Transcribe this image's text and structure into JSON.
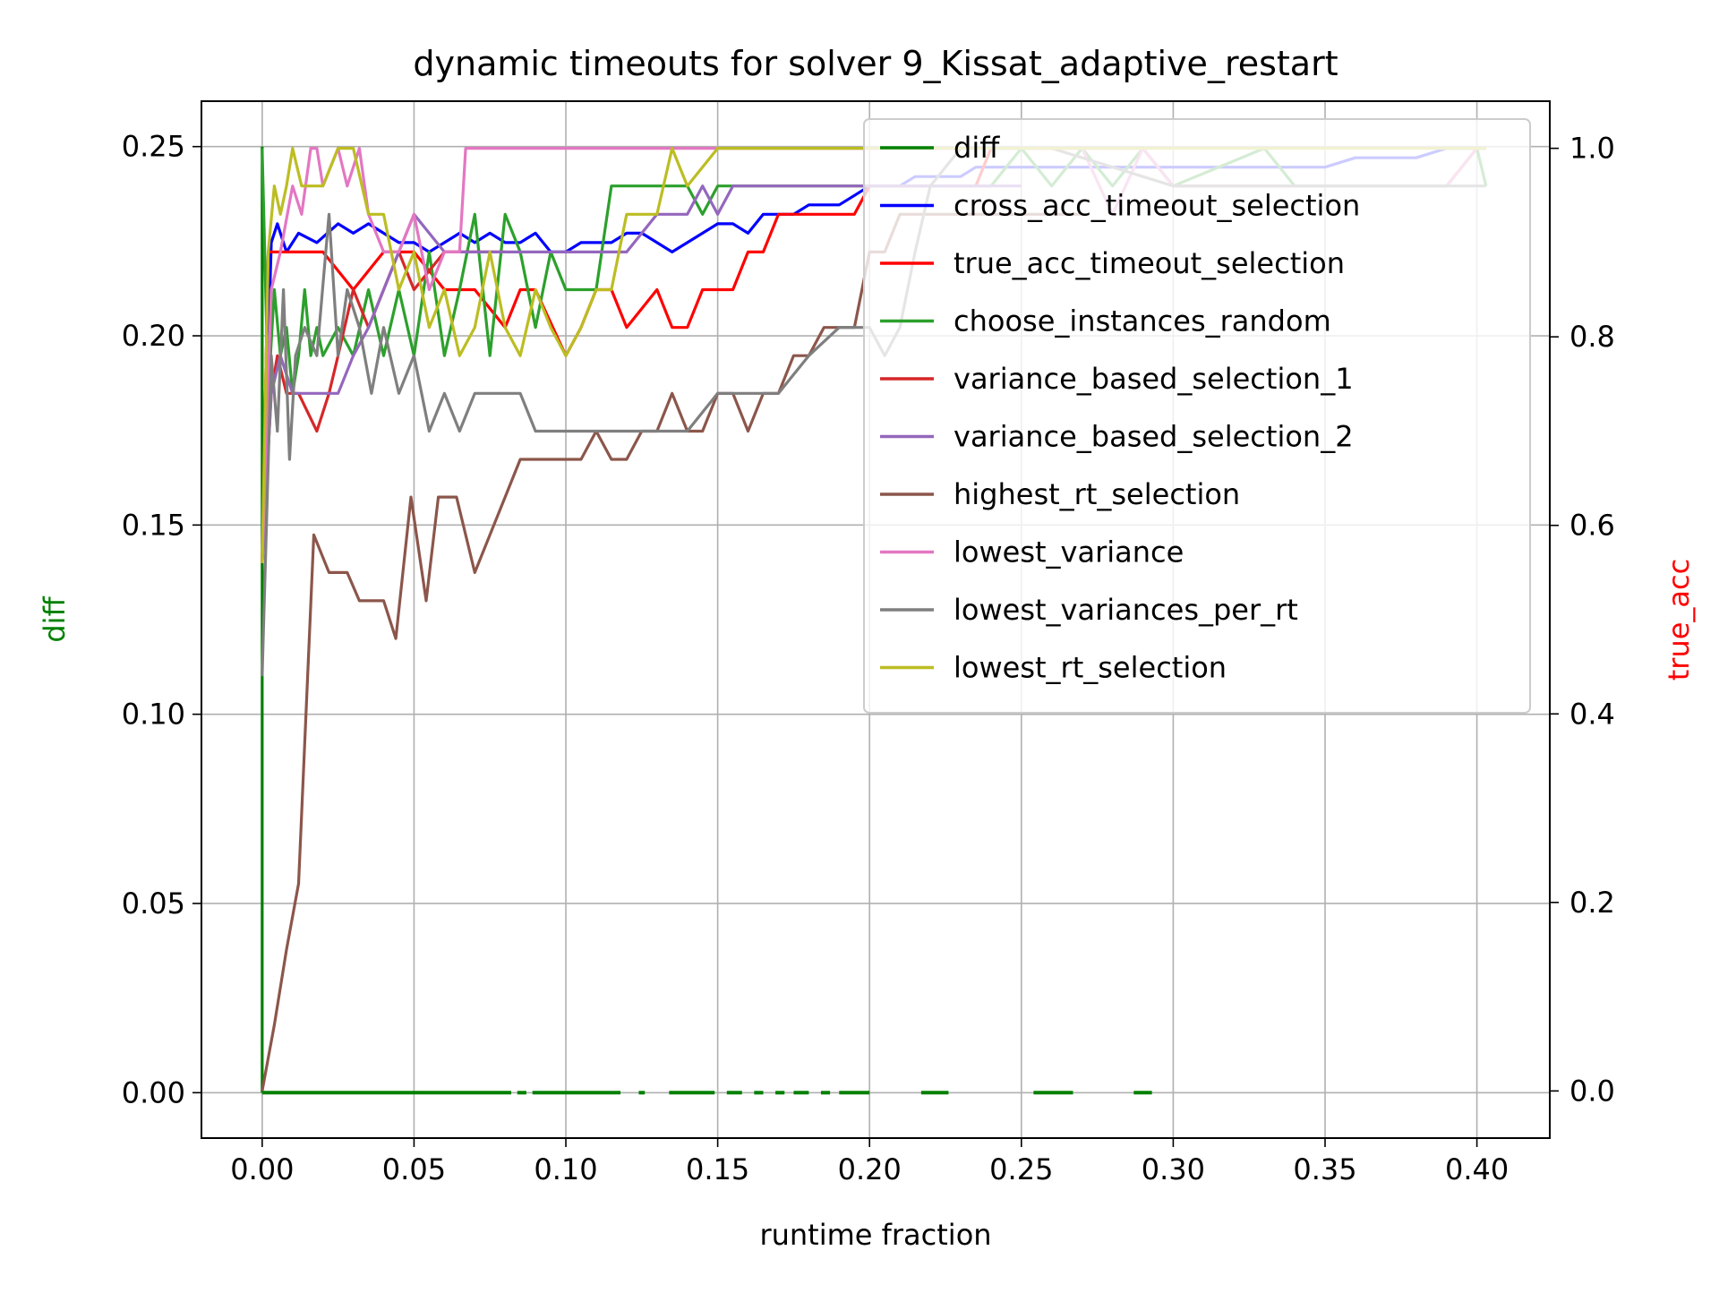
{
  "chart_data": {
    "type": "line",
    "title": "dynamic timeouts for solver 9_Kissat_adaptive_restart",
    "xlabel": "runtime fraction",
    "ylabel_left": "diff",
    "ylabel_right": "true_acc",
    "xlim": [
      -0.02,
      0.424
    ],
    "ylim_left": [
      -0.012,
      0.262
    ],
    "ylim_right": [
      -0.05,
      1.05
    ],
    "x_ticks": [
      "0.00",
      "0.05",
      "0.10",
      "0.15",
      "0.20",
      "0.25",
      "0.30",
      "0.35",
      "0.40"
    ],
    "y_left_ticks": [
      "0.00",
      "0.05",
      "0.10",
      "0.15",
      "0.20",
      "0.25"
    ],
    "y_right_ticks": [
      "0.0",
      "0.2",
      "0.4",
      "0.6",
      "0.8",
      "1.0"
    ],
    "grid": true,
    "legend_position": "top-right",
    "colors": {
      "diff": "#008000",
      "axis_label_left": "#008000",
      "axis_label_right": "#ff0000"
    },
    "diff_series": {
      "name": "diff",
      "color": "#008000",
      "spike": {
        "x": 0.0,
        "y_top": 0.25
      },
      "zero_segments": [
        [
          0.0,
          0.082
        ],
        [
          0.084,
          0.087
        ],
        [
          0.089,
          0.118
        ],
        [
          0.124,
          0.126
        ],
        [
          0.134,
          0.149
        ],
        [
          0.153,
          0.158
        ],
        [
          0.162,
          0.165
        ],
        [
          0.169,
          0.172
        ],
        [
          0.175,
          0.18
        ],
        [
          0.184,
          0.187
        ],
        [
          0.19,
          0.2
        ],
        [
          0.217,
          0.226
        ],
        [
          0.254,
          0.267
        ],
        [
          0.287,
          0.293
        ]
      ]
    },
    "series": [
      {
        "name": "cross_acc_timeout_selection",
        "color": "#0000ff",
        "axis": "right",
        "x": [
          0,
          0.003,
          0.005,
          0.008,
          0.012,
          0.018,
          0.025,
          0.03,
          0.035,
          0.04,
          0.045,
          0.05,
          0.055,
          0.06,
          0.065,
          0.07,
          0.075,
          0.08,
          0.085,
          0.09,
          0.095,
          0.1,
          0.105,
          0.11,
          0.115,
          0.12,
          0.125,
          0.13,
          0.135,
          0.14,
          0.145,
          0.15,
          0.155,
          0.16,
          0.165,
          0.17,
          0.175,
          0.18,
          0.185,
          0.19,
          0.195,
          0.2,
          0.205,
          0.21,
          0.215,
          0.22,
          0.225,
          0.23,
          0.235,
          0.24,
          0.245,
          0.25,
          0.26,
          0.27,
          0.28,
          0.29,
          0.3,
          0.31,
          0.32,
          0.33,
          0.34,
          0.35,
          0.36,
          0.37,
          0.38,
          0.39,
          0.403
        ],
        "y": [
          0.56,
          0.9,
          0.92,
          0.89,
          0.91,
          0.9,
          0.92,
          0.91,
          0.92,
          0.91,
          0.9,
          0.9,
          0.89,
          0.9,
          0.91,
          0.9,
          0.91,
          0.9,
          0.9,
          0.91,
          0.89,
          0.89,
          0.9,
          0.9,
          0.9,
          0.91,
          0.91,
          0.9,
          0.89,
          0.9,
          0.91,
          0.92,
          0.92,
          0.91,
          0.93,
          0.93,
          0.93,
          0.94,
          0.94,
          0.94,
          0.95,
          0.96,
          0.96,
          0.96,
          0.97,
          0.97,
          0.97,
          0.97,
          0.98,
          0.98,
          0.98,
          0.98,
          0.98,
          0.98,
          0.98,
          0.98,
          0.98,
          0.98,
          0.98,
          0.98,
          0.98,
          0.98,
          0.99,
          0.99,
          0.99,
          1.0,
          1.0
        ]
      },
      {
        "name": "true_acc_timeout_selection",
        "color": "#ff0000",
        "axis": "right",
        "x": [
          0,
          0.002,
          0.005,
          0.01,
          0.02,
          0.03,
          0.04,
          0.05,
          0.06,
          0.07,
          0.08,
          0.085,
          0.09,
          0.1,
          0.105,
          0.11,
          0.115,
          0.12,
          0.13,
          0.135,
          0.14,
          0.145,
          0.15,
          0.155,
          0.16,
          0.165,
          0.17,
          0.18,
          0.19,
          0.195,
          0.2,
          0.22,
          0.23,
          0.235,
          0.24,
          0.26,
          0.29,
          0.3,
          0.35,
          0.38,
          0.39,
          0.4,
          0.403
        ],
        "y": [
          0.56,
          0.89,
          0.89,
          0.89,
          0.89,
          0.85,
          0.89,
          0.89,
          0.85,
          0.85,
          0.81,
          0.85,
          0.85,
          0.78,
          0.81,
          0.85,
          0.85,
          0.81,
          0.85,
          0.81,
          0.81,
          0.85,
          0.85,
          0.85,
          0.89,
          0.89,
          0.93,
          0.93,
          0.93,
          0.93,
          0.96,
          0.96,
          0.96,
          0.96,
          1.0,
          1.0,
          1.0,
          0.96,
          0.96,
          0.96,
          0.96,
          1.0,
          1.0
        ]
      },
      {
        "name": "choose_instances_random",
        "color": "#2ca02c",
        "axis": "right",
        "x": [
          0,
          0.002,
          0.004,
          0.006,
          0.008,
          0.01,
          0.012,
          0.014,
          0.016,
          0.018,
          0.02,
          0.025,
          0.03,
          0.035,
          0.04,
          0.045,
          0.05,
          0.055,
          0.06,
          0.065,
          0.07,
          0.075,
          0.08,
          0.085,
          0.09,
          0.095,
          0.1,
          0.105,
          0.11,
          0.115,
          0.12,
          0.13,
          0.14,
          0.145,
          0.15,
          0.2,
          0.24,
          0.25,
          0.26,
          0.27,
          0.28,
          0.29,
          0.3,
          0.33,
          0.34,
          0.35,
          0.36,
          0.37,
          0.38,
          0.39,
          0.4,
          0.403
        ],
        "y": [
          1.0,
          0.74,
          0.85,
          0.78,
          0.81,
          0.74,
          0.78,
          0.85,
          0.78,
          0.81,
          0.78,
          0.81,
          0.78,
          0.85,
          0.78,
          0.85,
          0.78,
          0.89,
          0.78,
          0.85,
          0.93,
          0.78,
          0.93,
          0.89,
          0.81,
          0.89,
          0.85,
          0.85,
          0.85,
          0.96,
          0.96,
          0.96,
          0.96,
          0.93,
          0.96,
          0.96,
          0.96,
          1.0,
          0.96,
          1.0,
          0.96,
          1.0,
          0.96,
          1.0,
          0.96,
          0.96,
          0.96,
          0.96,
          0.96,
          0.96,
          1.0,
          0.96
        ]
      },
      {
        "name": "variance_based_selection_1",
        "color": "#d62728",
        "axis": "right",
        "x": [
          0,
          0.003,
          0.005,
          0.008,
          0.012,
          0.018,
          0.022,
          0.025,
          0.03,
          0.035,
          0.04,
          0.045,
          0.05,
          0.06,
          0.07,
          0.08
        ],
        "y": [
          0.56,
          0.74,
          0.78,
          0.74,
          0.74,
          0.7,
          0.74,
          0.78,
          0.85,
          0.81,
          0.85,
          0.89,
          0.85,
          0.89,
          0.89,
          0.89
        ]
      },
      {
        "name": "variance_based_selection_2",
        "color": "#9467bd",
        "axis": "right",
        "x": [
          0,
          0.003,
          0.006,
          0.01,
          0.015,
          0.02,
          0.025,
          0.03,
          0.035,
          0.04,
          0.045,
          0.05,
          0.06,
          0.065,
          0.1,
          0.12,
          0.13,
          0.14,
          0.145,
          0.15,
          0.155,
          0.16,
          0.25
        ],
        "y": [
          0.56,
          0.74,
          0.78,
          0.74,
          0.74,
          0.74,
          0.74,
          0.78,
          0.81,
          0.85,
          0.89,
          0.93,
          0.89,
          0.89,
          0.89,
          0.89,
          0.93,
          0.93,
          0.96,
          0.93,
          0.96,
          0.96,
          0.96
        ]
      },
      {
        "name": "highest_rt_selection",
        "color": "#8c564b",
        "axis": "right",
        "x": [
          0,
          0.004,
          0.008,
          0.012,
          0.017,
          0.022,
          0.025,
          0.028,
          0.032,
          0.035,
          0.04,
          0.044,
          0.049,
          0.054,
          0.058,
          0.064,
          0.07,
          0.075,
          0.08,
          0.085,
          0.09,
          0.1,
          0.105,
          0.11,
          0.115,
          0.12,
          0.125,
          0.13,
          0.135,
          0.14,
          0.145,
          0.15,
          0.155,
          0.16,
          0.165,
          0.17,
          0.175,
          0.18,
          0.185,
          0.19,
          0.195,
          0.2,
          0.205,
          0.21,
          0.215,
          0.22,
          0.225,
          0.23,
          0.24,
          0.25,
          0.26,
          0.27
        ],
        "y": [
          0.0,
          0.07,
          0.15,
          0.22,
          0.59,
          0.55,
          0.55,
          0.55,
          0.52,
          0.52,
          0.52,
          0.48,
          0.63,
          0.52,
          0.63,
          0.63,
          0.55,
          0.59,
          0.63,
          0.67,
          0.67,
          0.67,
          0.67,
          0.7,
          0.67,
          0.67,
          0.7,
          0.7,
          0.74,
          0.7,
          0.7,
          0.74,
          0.74,
          0.7,
          0.74,
          0.74,
          0.78,
          0.78,
          0.81,
          0.81,
          0.81,
          0.89,
          0.89,
          0.93,
          0.93,
          0.93,
          0.93,
          0.93,
          0.93,
          0.93,
          0.93,
          0.93
        ]
      },
      {
        "name": "lowest_variance",
        "color": "#e377c2",
        "axis": "right",
        "x": [
          0,
          0.003,
          0.006,
          0.01,
          0.013,
          0.016,
          0.018,
          0.02,
          0.025,
          0.028,
          0.032,
          0.035,
          0.04,
          0.045,
          0.05,
          0.055,
          0.06,
          0.065,
          0.067,
          0.1,
          0.15,
          0.2,
          0.25,
          0.27,
          0.28,
          0.29,
          0.3,
          0.37,
          0.38,
          0.39,
          0.4,
          0.403
        ],
        "y": [
          0.56,
          0.85,
          0.89,
          0.96,
          0.93,
          1.0,
          1.0,
          0.96,
          1.0,
          0.96,
          1.0,
          0.93,
          0.89,
          0.89,
          0.93,
          0.85,
          0.89,
          0.89,
          1.0,
          1.0,
          1.0,
          1.0,
          1.0,
          1.0,
          0.93,
          1.0,
          0.96,
          0.96,
          0.96,
          0.96,
          1.0,
          1.0
        ]
      },
      {
        "name": "lowest_variances_per_rt",
        "color": "#7f7f7f",
        "axis": "right",
        "x": [
          0,
          0.003,
          0.005,
          0.007,
          0.009,
          0.011,
          0.014,
          0.018,
          0.022,
          0.025,
          0.028,
          0.032,
          0.036,
          0.04,
          0.045,
          0.05,
          0.055,
          0.06,
          0.065,
          0.07,
          0.075,
          0.08,
          0.085,
          0.09,
          0.095,
          0.1,
          0.11,
          0.12,
          0.13,
          0.14,
          0.15,
          0.16,
          0.17,
          0.18,
          0.19,
          0.2,
          0.205,
          0.21,
          0.215,
          0.22,
          0.23,
          0.26,
          0.3,
          0.35,
          0.38,
          0.4,
          0.403
        ],
        "y": [
          0.44,
          0.78,
          0.7,
          0.85,
          0.67,
          0.78,
          0.81,
          0.78,
          0.93,
          0.78,
          0.85,
          0.81,
          0.74,
          0.81,
          0.74,
          0.78,
          0.7,
          0.74,
          0.7,
          0.74,
          0.74,
          0.74,
          0.74,
          0.7,
          0.7,
          0.7,
          0.7,
          0.7,
          0.7,
          0.7,
          0.74,
          0.74,
          0.74,
          0.78,
          0.81,
          0.81,
          0.78,
          0.81,
          0.89,
          0.96,
          1.0,
          1.0,
          0.96,
          0.96,
          0.96,
          0.96,
          0.96
        ]
      },
      {
        "name": "lowest_rt_selection",
        "color": "#bcbd22",
        "axis": "right",
        "x": [
          0,
          0.002,
          0.004,
          0.006,
          0.008,
          0.01,
          0.013,
          0.016,
          0.02,
          0.025,
          0.03,
          0.035,
          0.04,
          0.045,
          0.05,
          0.055,
          0.06,
          0.065,
          0.07,
          0.075,
          0.08,
          0.085,
          0.09,
          0.095,
          0.1,
          0.105,
          0.11,
          0.115,
          0.12,
          0.13,
          0.135,
          0.14,
          0.15,
          0.2,
          0.25,
          0.3,
          0.35,
          0.4,
          0.403
        ],
        "y": [
          0.56,
          0.89,
          0.96,
          0.93,
          0.96,
          1.0,
          0.96,
          0.96,
          0.96,
          1.0,
          1.0,
          0.93,
          0.93,
          0.85,
          0.89,
          0.81,
          0.85,
          0.78,
          0.81,
          0.89,
          0.81,
          0.78,
          0.85,
          0.81,
          0.78,
          0.81,
          0.85,
          0.85,
          0.93,
          0.93,
          1.0,
          0.96,
          1.0,
          1.0,
          1.0,
          1.0,
          1.0,
          1.0,
          1.0
        ]
      }
    ]
  }
}
